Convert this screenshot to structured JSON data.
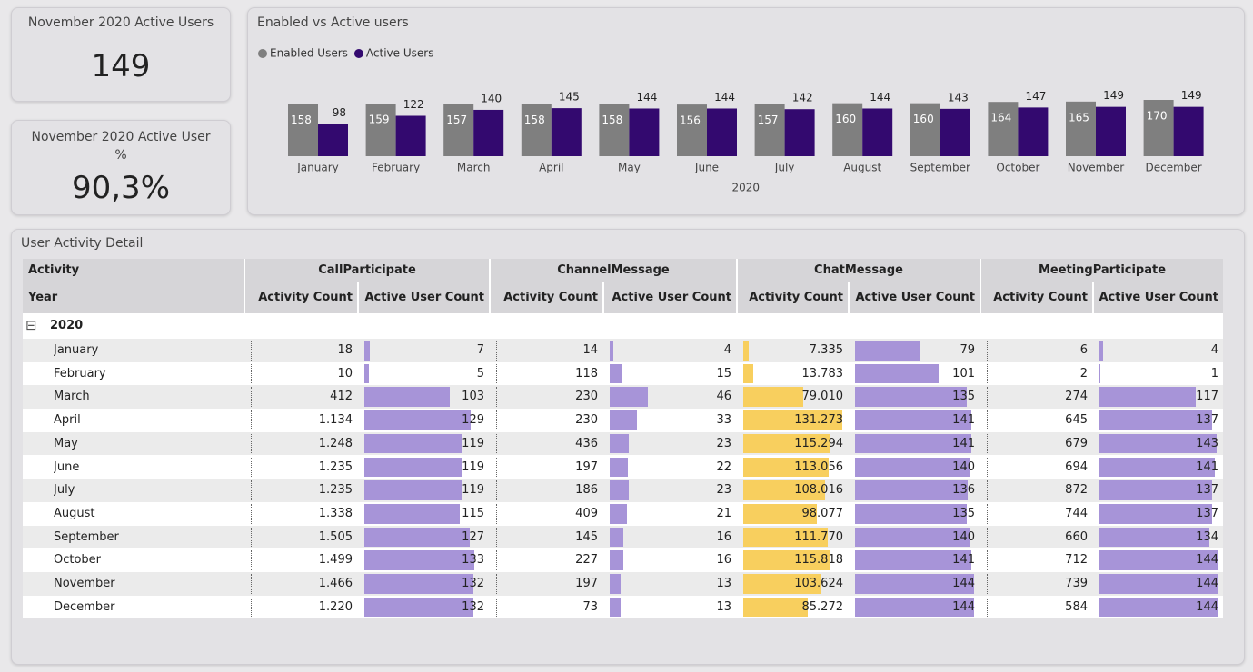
{
  "cards": [
    {
      "title": "November 2020 Active Users",
      "value": "149"
    },
    {
      "title": "November 2020 Active User %",
      "value": "90,3%"
    }
  ],
  "chart_data": {
    "type": "bar",
    "title": "Enabled vs Active users",
    "xlabel": "2020",
    "categories": [
      "January",
      "February",
      "March",
      "April",
      "May",
      "June",
      "July",
      "August",
      "September",
      "October",
      "November",
      "December"
    ],
    "series": [
      {
        "name": "Enabled Users",
        "color": "#7f7f7f",
        "values": [
          158,
          159,
          157,
          158,
          158,
          156,
          157,
          160,
          160,
          164,
          165,
          170
        ]
      },
      {
        "name": "Active Users",
        "color": "#33096f",
        "values": [
          98,
          122,
          140,
          145,
          144,
          144,
          142,
          144,
          143,
          147,
          149,
          149
        ]
      }
    ]
  },
  "table": {
    "title": "User Activity Detail",
    "row_header": "Activity",
    "year_header": "Year",
    "year": "2020",
    "collapse_icon": "⊟",
    "groups": [
      {
        "name": "CallParticipate",
        "columns": [
          "Activity Count",
          "Active User Count"
        ]
      },
      {
        "name": "ChannelMessage",
        "columns": [
          "Activity Count",
          "Active User Count"
        ]
      },
      {
        "name": "ChatMessage",
        "columns": [
          "Activity Count",
          "Active User Count"
        ]
      },
      {
        "name": "MeetingParticipate",
        "columns": [
          "Activity Count",
          "Active User Count"
        ]
      }
    ],
    "databar_colors": [
      null,
      "#a794d8",
      null,
      "#a794d8",
      "#f8cf5e",
      "#a794d8",
      null,
      "#a794d8"
    ],
    "rows": [
      {
        "label": "January",
        "cells": [
          18,
          7,
          14,
          4,
          {
            "value": 7335,
            "label": "7.335"
          },
          79,
          6,
          4
        ]
      },
      {
        "label": "February",
        "cells": [
          10,
          5,
          118,
          15,
          {
            "value": 13783,
            "label": "13.783"
          },
          101,
          2,
          1
        ]
      },
      {
        "label": "March",
        "cells": [
          412,
          103,
          230,
          46,
          {
            "value": 79010,
            "label": "79.010"
          },
          135,
          274,
          117
        ]
      },
      {
        "label": "April",
        "cells": [
          {
            "value": 1134,
            "label": "1.134"
          },
          129,
          230,
          33,
          {
            "value": 131273,
            "label": "131.273"
          },
          141,
          645,
          137
        ]
      },
      {
        "label": "May",
        "cells": [
          {
            "value": 1248,
            "label": "1.248"
          },
          119,
          436,
          23,
          {
            "value": 115294,
            "label": "115.294"
          },
          141,
          679,
          143
        ]
      },
      {
        "label": "June",
        "cells": [
          {
            "value": 1235,
            "label": "1.235"
          },
          119,
          197,
          22,
          {
            "value": 113056,
            "label": "113.056"
          },
          140,
          694,
          141
        ]
      },
      {
        "label": "July",
        "cells": [
          {
            "value": 1235,
            "label": "1.235"
          },
          119,
          186,
          23,
          {
            "value": 108016,
            "label": "108.016"
          },
          136,
          872,
          137
        ]
      },
      {
        "label": "August",
        "cells": [
          {
            "value": 1338,
            "label": "1.338"
          },
          115,
          409,
          21,
          {
            "value": 98077,
            "label": "98.077"
          },
          135,
          744,
          137
        ]
      },
      {
        "label": "September",
        "cells": [
          {
            "value": 1505,
            "label": "1.505"
          },
          127,
          145,
          16,
          {
            "value": 111770,
            "label": "111.770"
          },
          140,
          660,
          134
        ]
      },
      {
        "label": "October",
        "cells": [
          {
            "value": 1499,
            "label": "1.499"
          },
          133,
          227,
          16,
          {
            "value": 115818,
            "label": "115.818"
          },
          141,
          712,
          144
        ]
      },
      {
        "label": "November",
        "cells": [
          {
            "value": 1466,
            "label": "1.466"
          },
          132,
          197,
          13,
          {
            "value": 103624,
            "label": "103.624"
          },
          144,
          739,
          144
        ]
      },
      {
        "label": "December",
        "cells": [
          {
            "value": 1220,
            "label": "1.220"
          },
          132,
          73,
          13,
          {
            "value": 85272,
            "label": "85.272"
          },
          144,
          584,
          144
        ]
      }
    ]
  }
}
